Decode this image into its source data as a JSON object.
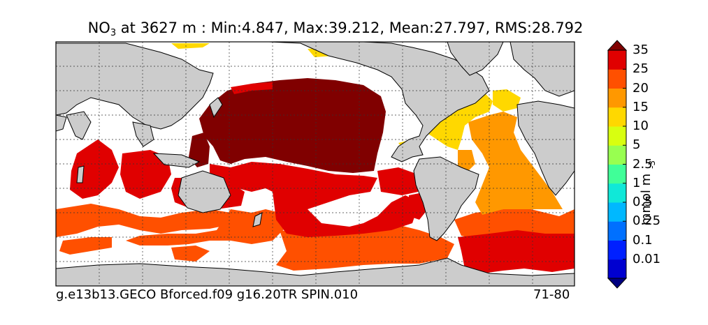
{
  "title": {
    "variable": "NO",
    "subscript": "3",
    "rest": " at 3627 m : Min:4.847, Max:39.212, Mean:27.797, RMS:28.792"
  },
  "footer": {
    "run_name": "g.e13b13.GECO Bforced.f09 g16.20TR SPIN.010",
    "years": "71-80"
  },
  "colorbar": {
    "unit_label": "mmol m",
    "unit_exponent": "-3",
    "levels": [
      "0.01",
      "0.1",
      "0.25",
      "0.5",
      "1",
      "2.5",
      "5",
      "10",
      "15",
      "20",
      "25",
      "35"
    ],
    "colors": [
      "#000080",
      "#0000d0",
      "#0020ff",
      "#0070ff",
      "#00b8ff",
      "#10e8d8",
      "#40ff98",
      "#98ff50",
      "#d8ff10",
      "#ffd800",
      "#ff9800",
      "#ff5000",
      "#e00000",
      "#800000"
    ]
  },
  "map": {
    "land_color": "#cccccc",
    "missing_color": "#ffffff"
  }
}
